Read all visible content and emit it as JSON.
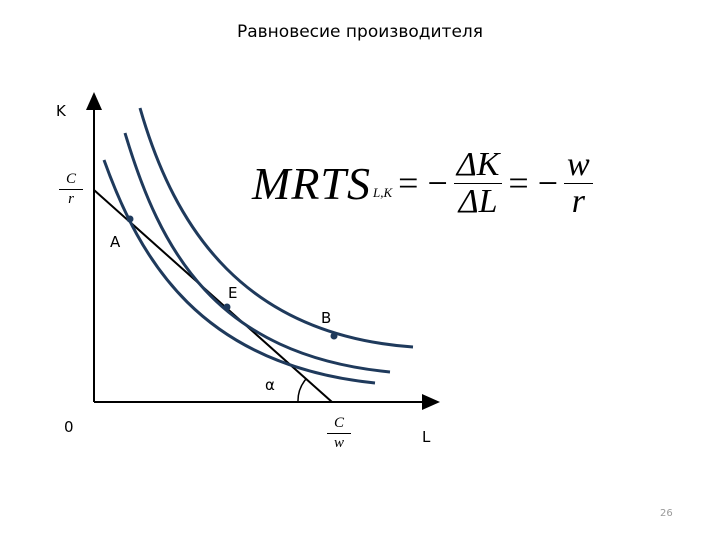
{
  "title": "Равновесие производителя",
  "axes": {
    "y_label": "K",
    "x_label": "L",
    "origin_label": "0",
    "y_intercept": {
      "num": "C",
      "den": "r"
    },
    "x_intercept": {
      "num": "C",
      "den": "w"
    }
  },
  "points": {
    "a": "A",
    "e": "E",
    "b": "B"
  },
  "angle_label": "α",
  "formula": {
    "lhs": "MRTS",
    "lhs_sub": "L,K",
    "eq1": "= −",
    "frac1_num": "ΔK",
    "frac1_den": "ΔL",
    "eq2": "= −",
    "frac2_num": "w",
    "frac2_den": "r"
  },
  "page_number": "26",
  "colors": {
    "isoquant": "#1f3a5c",
    "axis": "#000000",
    "budget_line": "#000000",
    "point": "#1f3a5c"
  }
}
